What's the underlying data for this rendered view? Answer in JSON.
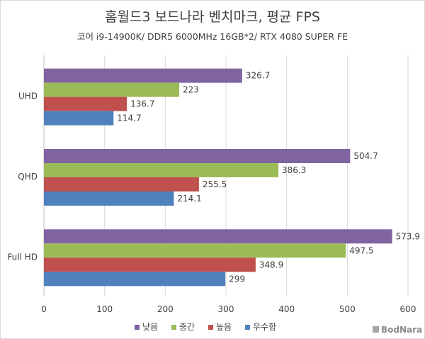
{
  "chart_data": {
    "type": "bar",
    "orientation": "horizontal",
    "title": "홈월드3 보드나라 벤치마크, 평균 FPS",
    "subtitle": "코어 i9-14900K/ DDR5 6000MHz 16GB*2/ RTX 4080 SUPER FE",
    "categories": [
      "UHD",
      "QHD",
      "Full HD"
    ],
    "series": [
      {
        "name": "낮음",
        "color": "#8064a2",
        "values": [
          326.7,
          504.7,
          573.9
        ]
      },
      {
        "name": "중간",
        "color": "#9bbb59",
        "values": [
          223,
          386.3,
          497.5
        ]
      },
      {
        "name": "높음",
        "color": "#c0504d",
        "values": [
          136.7,
          255.5,
          348.9
        ]
      },
      {
        "name": "우수함",
        "color": "#4f81bd",
        "values": [
          114.7,
          214.1,
          299
        ]
      }
    ],
    "xlim": [
      0,
      600
    ],
    "xticks": [
      0,
      100,
      200,
      300,
      400,
      500,
      600
    ],
    "grid": true,
    "legend": "bottom"
  },
  "watermark": {
    "text": "BodNara"
  }
}
